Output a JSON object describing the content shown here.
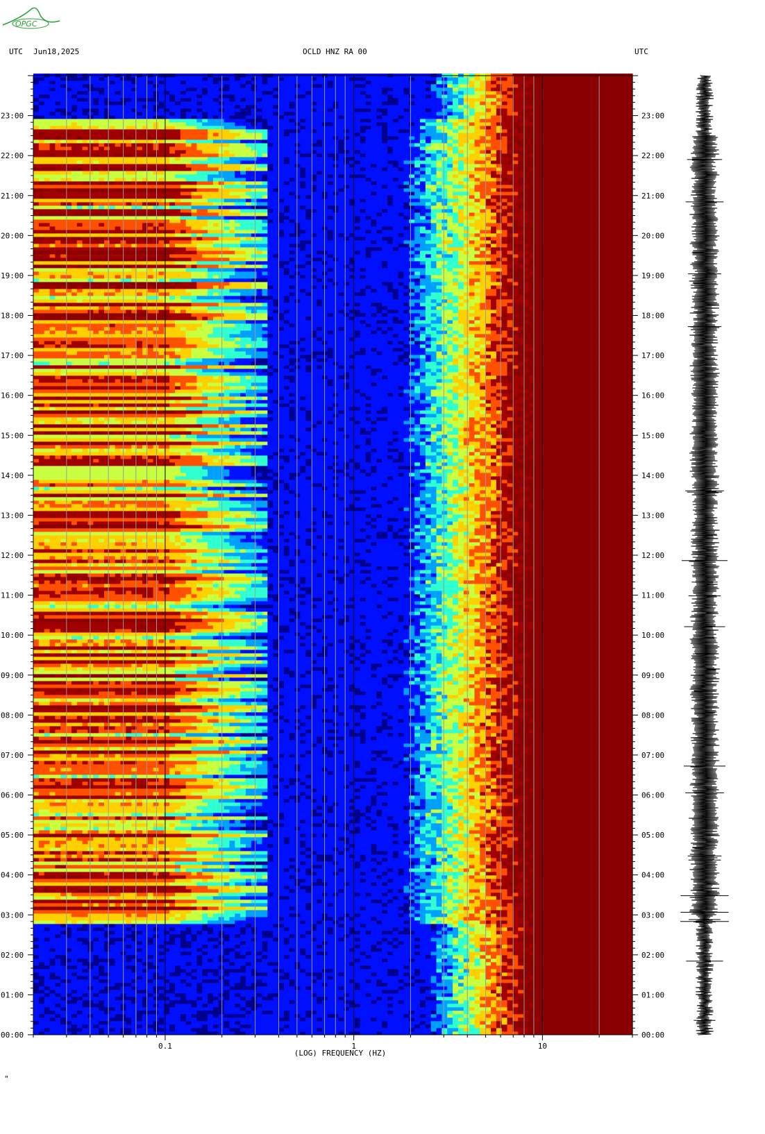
{
  "header": {
    "utc_left": "UTC",
    "date": "Jun18,2025",
    "channel": "OCLD HNZ RA 00",
    "utc_right": "UTC"
  },
  "logo": {
    "text": "OPGC",
    "color": "#2e9e3a"
  },
  "chart_data": {
    "type": "heatmap",
    "title": "OCLD HNZ RA 00",
    "xlabel": "(LOG) FREQUENCY (HZ)",
    "ylabel": "",
    "x_scale": "log",
    "xlim": [
      0.02,
      30
    ],
    "x_ticks": [
      0.1,
      1,
      10
    ],
    "x_tick_labels": [
      "0.1",
      "1",
      "10"
    ],
    "ylim_hours": [
      0,
      24
    ],
    "y_tick_labels": [
      "00:00",
      "01:00",
      "02:00",
      "03:00",
      "04:00",
      "05:00",
      "06:00",
      "07:00",
      "08:00",
      "09:00",
      "10:00",
      "11:00",
      "12:00",
      "13:00",
      "14:00",
      "15:00",
      "16:00",
      "17:00",
      "18:00",
      "19:00",
      "20:00",
      "21:00",
      "22:00",
      "23:00"
    ],
    "colormap": [
      "#00008f",
      "#0010ff",
      "#00a0ff",
      "#30ffd0",
      "#c8ff40",
      "#ffd000",
      "#ff5000",
      "#a00000",
      "#8b0000"
    ],
    "features": {
      "low_freq_band_hz": [
        0.02,
        0.35
      ],
      "low_freq_active_hours": [
        2.75,
        22.9
      ],
      "transition_freq_hz_day": 2.0,
      "saturation_freq_hz": 10
    }
  },
  "seismogram": {
    "color": "#000000"
  }
}
